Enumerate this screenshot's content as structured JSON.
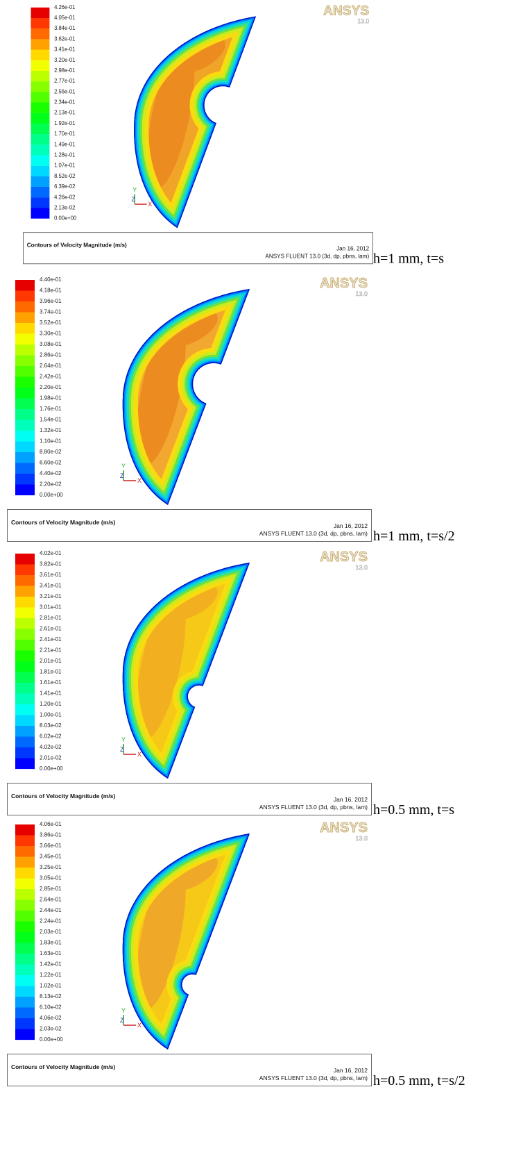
{
  "panels": [
    {
      "logo": "ANSYS",
      "version": "13.0",
      "colorbar": [
        "4.26e-01",
        "4.05e-01",
        "3.84e-01",
        "3.62e-01",
        "3.41e-01",
        "3.20e-01",
        "2.98e-01",
        "2.77e-01",
        "2.56e-01",
        "2.34e-01",
        "2.13e-01",
        "1.92e-01",
        "1.70e-01",
        "1.49e-01",
        "1.28e-01",
        "1.07e-01",
        "8.52e-02",
        "6.39e-02",
        "4.26e-02",
        "2.13e-02",
        "0.00e+00"
      ],
      "axes": {
        "y": "Y",
        "z": "Z",
        "x": "X"
      },
      "footer": {
        "title": "Contours of Velocity Magnitude (m/s)",
        "date": "Jan 16, 2012",
        "solver": "ANSYS FLUENT 13.0 (3d, dp, pbns, lam)"
      },
      "caption": "h=1 mm, t=s"
    },
    {
      "logo": "ANSYS",
      "version": "13.0",
      "colorbar": [
        "4.40e-01",
        "4.18e-01",
        "3.96e-01",
        "3.74e-01",
        "3.52e-01",
        "3.30e-01",
        "3.08e-01",
        "2.86e-01",
        "2.64e-01",
        "2.42e-01",
        "2.20e-01",
        "1.98e-01",
        "1.76e-01",
        "1.54e-01",
        "1.32e-01",
        "1.10e-01",
        "8.80e-02",
        "6.60e-02",
        "4.40e-02",
        "2.20e-02",
        "0.00e+00"
      ],
      "axes": {
        "y": "Y",
        "z": "Z",
        "x": "X"
      },
      "footer": {
        "title": "Contours of Velocity Magnitude (m/s)",
        "date": "Jan 16, 2012",
        "solver": "ANSYS FLUENT 13.0 (3d, dp, pbns, lam)"
      },
      "caption": "h=1 mm, t=s/2"
    },
    {
      "logo": "ANSYS",
      "version": "13.0",
      "colorbar": [
        "4.02e-01",
        "3.82e-01",
        "3.61e-01",
        "3.41e-01",
        "3.21e-01",
        "3.01e-01",
        "2.81e-01",
        "2.61e-01",
        "2.41e-01",
        "2.21e-01",
        "2.01e-01",
        "1.81e-01",
        "1.61e-01",
        "1.41e-01",
        "1.20e-01",
        "1.00e-01",
        "8.03e-02",
        "6.02e-02",
        "4.02e-02",
        "2.01e-02",
        "0.00e+00"
      ],
      "axes": {
        "y": "Y",
        "z": "Z",
        "x": "X"
      },
      "footer": {
        "title": "Contours of Velocity Magnitude (m/s)",
        "date": "Jan 16, 2012",
        "solver": "ANSYS FLUENT 13.0 (3d, dp, pbns, lam)"
      },
      "caption": "h=0.5 mm, t=s"
    },
    {
      "logo": "ANSYS",
      "version": "13.0",
      "colorbar": [
        "4.06e-01",
        "3.86e-01",
        "3.66e-01",
        "3.45e-01",
        "3.25e-01",
        "3.05e-01",
        "2.85e-01",
        "2.64e-01",
        "2.44e-01",
        "2.24e-01",
        "2.03e-01",
        "1.83e-01",
        "1.63e-01",
        "1.42e-01",
        "1.22e-01",
        "1.02e-01",
        "8.13e-02",
        "6.10e-02",
        "4.06e-02",
        "2.03e-02",
        "0.00e+00"
      ],
      "axes": {
        "y": "Y",
        "z": "Z",
        "x": "X"
      },
      "footer": {
        "title": "Contours of Velocity Magnitude (m/s)",
        "date": "Jan 16, 2012",
        "solver": "ANSYS FLUENT 13.0 (3d, dp, pbns, lam)"
      },
      "caption": "h=0.5 mm, t=s/2"
    }
  ]
}
